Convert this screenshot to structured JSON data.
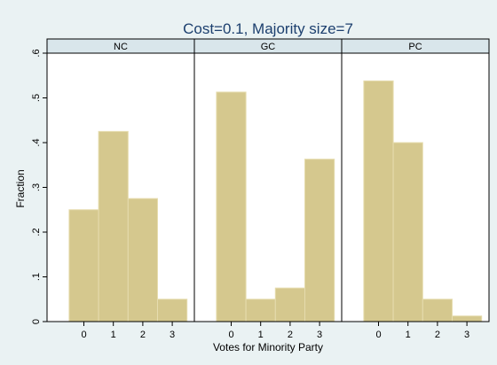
{
  "chart_data": {
    "type": "histogram",
    "title": "Cost=0.1, Majority size=7",
    "x_label": "Votes for Minority Party",
    "y_label": "Fraction",
    "bins": [
      -0.5,
      0.5,
      1.5,
      2.5,
      3.5
    ],
    "xlim": [
      -1.25,
      3.75
    ],
    "xticks": [
      0,
      1,
      2,
      3
    ],
    "ylim": [
      0,
      0.6
    ],
    "yticks": [
      0,
      {
        "value": 0.1,
        "label": ".1"
      },
      {
        "value": 0.2,
        "label": ".2"
      },
      {
        "value": 0.3,
        "label": ".3"
      },
      {
        "value": 0.4,
        "label": ".4"
      },
      {
        "value": 0.5,
        "label": ".5"
      },
      {
        "value": 0.6,
        "label": ".6"
      }
    ],
    "color": "#d5c88e",
    "grid": false,
    "panels": [
      {
        "name": "NC",
        "values": [
          0.25,
          0.425,
          0.275,
          0.05
        ]
      },
      {
        "name": "GC",
        "values": [
          0.513,
          0.05,
          0.075,
          0.363
        ]
      },
      {
        "name": "PC",
        "values": [
          0.538,
          0.4,
          0.05,
          0.0125
        ]
      }
    ]
  }
}
